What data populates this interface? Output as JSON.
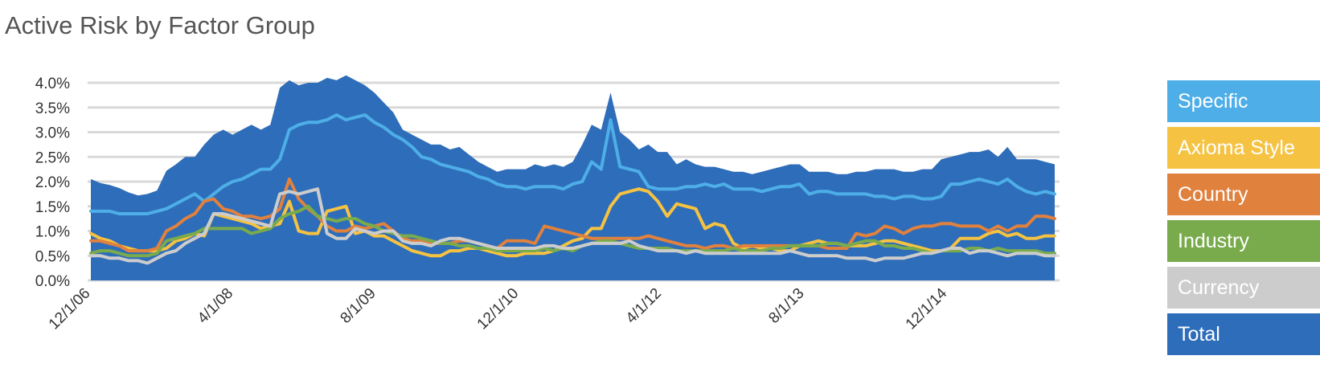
{
  "chart_data": {
    "type": "area",
    "title": "Active Risk by Factor Group",
    "y_ticks": [
      "4.0%",
      "3.5%",
      "3.0%",
      "2.5%",
      "2.0%",
      "1.5%",
      "1.0%",
      "0.5%",
      "0.0%"
    ],
    "x_ticks": [
      "12/1/06",
      "4/1/08",
      "8/1/09",
      "12/1/10",
      "4/1/12",
      "8/1/13",
      "12/1/14"
    ],
    "ylim": [
      0,
      4.0
    ],
    "grid": true,
    "legend_position": "right",
    "x_start": "2006-12",
    "x_end": "2015-12",
    "series": [
      {
        "name": "Total",
        "color": "#2E6DB9",
        "kind": "area",
        "values": [
          2.05,
          1.97,
          1.93,
          1.87,
          1.78,
          1.72,
          1.75,
          1.82,
          2.22,
          2.35,
          2.5,
          2.5,
          2.75,
          2.95,
          3.05,
          2.95,
          3.05,
          3.15,
          3.05,
          3.15,
          3.9,
          4.05,
          3.95,
          4.0,
          4.0,
          4.1,
          4.05,
          4.15,
          4.05,
          3.95,
          3.8,
          3.6,
          3.4,
          3.05,
          2.95,
          2.85,
          2.75,
          2.75,
          2.65,
          2.7,
          2.55,
          2.4,
          2.3,
          2.2,
          2.25,
          2.25,
          2.25,
          2.35,
          2.3,
          2.35,
          2.3,
          2.4,
          2.75,
          3.15,
          3.05,
          3.8,
          3.0,
          2.85,
          2.65,
          2.75,
          2.6,
          2.6,
          2.35,
          2.45,
          2.35,
          2.3,
          2.3,
          2.25,
          2.2,
          2.2,
          2.15,
          2.2,
          2.25,
          2.3,
          2.35,
          2.35,
          2.2,
          2.2,
          2.2,
          2.15,
          2.15,
          2.2,
          2.2,
          2.25,
          2.25,
          2.25,
          2.2,
          2.2,
          2.25,
          2.25,
          2.45,
          2.5,
          2.55,
          2.6,
          2.6,
          2.65,
          2.5,
          2.7,
          2.45,
          2.45,
          2.45,
          2.4,
          2.35
        ]
      },
      {
        "name": "Specific",
        "color": "#4DAEE8",
        "kind": "line",
        "values": [
          1.4,
          1.4,
          1.4,
          1.35,
          1.35,
          1.35,
          1.35,
          1.4,
          1.45,
          1.55,
          1.65,
          1.75,
          1.6,
          1.75,
          1.9,
          2.0,
          2.05,
          2.15,
          2.25,
          2.25,
          2.45,
          3.05,
          3.15,
          3.2,
          3.2,
          3.25,
          3.35,
          3.25,
          3.3,
          3.35,
          3.2,
          3.1,
          2.95,
          2.85,
          2.7,
          2.5,
          2.45,
          2.35,
          2.3,
          2.25,
          2.2,
          2.1,
          2.05,
          1.95,
          1.9,
          1.9,
          1.85,
          1.9,
          1.9,
          1.9,
          1.85,
          1.95,
          2.0,
          2.4,
          2.25,
          3.25,
          2.3,
          2.25,
          2.2,
          1.9,
          1.85,
          1.85,
          1.85,
          1.9,
          1.9,
          1.95,
          1.9,
          1.95,
          1.85,
          1.85,
          1.85,
          1.8,
          1.85,
          1.9,
          1.9,
          1.95,
          1.75,
          1.8,
          1.8,
          1.75,
          1.75,
          1.75,
          1.75,
          1.7,
          1.7,
          1.65,
          1.7,
          1.7,
          1.65,
          1.65,
          1.7,
          1.95,
          1.95,
          2.0,
          2.05,
          2.0,
          1.95,
          2.05,
          1.9,
          1.8,
          1.75,
          1.8,
          1.75
        ]
      },
      {
        "name": "Axioma Style",
        "color": "#F5C242",
        "kind": "line",
        "values": [
          0.95,
          0.85,
          0.8,
          0.7,
          0.65,
          0.6,
          0.6,
          0.6,
          0.65,
          0.8,
          0.85,
          0.95,
          0.9,
          1.35,
          1.3,
          1.25,
          1.2,
          1.15,
          1.05,
          1.1,
          1.15,
          1.6,
          1.0,
          0.95,
          0.95,
          1.4,
          1.45,
          1.5,
          0.95,
          1.0,
          0.9,
          0.9,
          0.8,
          0.7,
          0.6,
          0.55,
          0.5,
          0.5,
          0.6,
          0.6,
          0.65,
          0.65,
          0.6,
          0.55,
          0.5,
          0.5,
          0.55,
          0.55,
          0.55,
          0.6,
          0.7,
          0.8,
          0.85,
          1.05,
          1.05,
          1.5,
          1.75,
          1.8,
          1.85,
          1.8,
          1.6,
          1.3,
          1.55,
          1.5,
          1.45,
          1.05,
          1.15,
          1.1,
          0.75,
          0.65,
          0.7,
          0.65,
          0.65,
          0.6,
          0.6,
          0.7,
          0.75,
          0.8,
          0.75,
          0.75,
          0.7,
          0.7,
          0.7,
          0.75,
          0.8,
          0.8,
          0.75,
          0.7,
          0.65,
          0.6,
          0.6,
          0.65,
          0.85,
          0.85,
          0.85,
          0.95,
          1.0,
          0.9,
          0.95,
          0.85,
          0.85,
          0.9,
          0.9
        ]
      },
      {
        "name": "Country",
        "color": "#E0813E",
        "kind": "line",
        "values": [
          0.8,
          0.8,
          0.75,
          0.7,
          0.6,
          0.6,
          0.6,
          0.65,
          1.0,
          1.1,
          1.25,
          1.35,
          1.6,
          1.65,
          1.45,
          1.4,
          1.3,
          1.3,
          1.25,
          1.3,
          1.45,
          2.05,
          1.65,
          1.45,
          1.3,
          1.1,
          1.0,
          1.0,
          1.1,
          1.05,
          1.1,
          1.15,
          1.0,
          0.85,
          0.8,
          0.8,
          0.75,
          0.75,
          0.75,
          0.8,
          0.8,
          0.75,
          0.7,
          0.65,
          0.8,
          0.8,
          0.8,
          0.75,
          1.1,
          1.05,
          1.0,
          0.95,
          0.9,
          0.85,
          0.85,
          0.85,
          0.85,
          0.85,
          0.85,
          0.9,
          0.85,
          0.8,
          0.75,
          0.7,
          0.7,
          0.65,
          0.7,
          0.7,
          0.65,
          0.7,
          0.7,
          0.7,
          0.7,
          0.7,
          0.7,
          0.7,
          0.7,
          0.7,
          0.65,
          0.65,
          0.65,
          0.95,
          0.9,
          0.95,
          1.1,
          1.05,
          0.95,
          1.05,
          1.1,
          1.1,
          1.15,
          1.15,
          1.1,
          1.1,
          1.1,
          1.0,
          1.1,
          1.0,
          1.1,
          1.1,
          1.3,
          1.3,
          1.25
        ]
      },
      {
        "name": "Industry",
        "color": "#79AB4D",
        "kind": "line",
        "values": [
          0.55,
          0.6,
          0.6,
          0.55,
          0.5,
          0.5,
          0.5,
          0.55,
          0.8,
          0.85,
          0.9,
          0.95,
          1.05,
          1.05,
          1.05,
          1.05,
          1.05,
          0.95,
          1.0,
          1.05,
          1.25,
          1.35,
          1.4,
          1.5,
          1.3,
          1.25,
          1.2,
          1.25,
          1.25,
          1.15,
          1.1,
          1.0,
          0.95,
          0.9,
          0.9,
          0.85,
          0.8,
          0.75,
          0.75,
          0.7,
          0.7,
          0.65,
          0.65,
          0.6,
          0.6,
          0.6,
          0.6,
          0.6,
          0.65,
          0.6,
          0.65,
          0.6,
          0.7,
          0.75,
          0.8,
          0.8,
          0.75,
          0.7,
          0.65,
          0.65,
          0.65,
          0.65,
          0.6,
          0.6,
          0.6,
          0.6,
          0.6,
          0.6,
          0.65,
          0.6,
          0.6,
          0.6,
          0.65,
          0.65,
          0.7,
          0.7,
          0.7,
          0.7,
          0.75,
          0.75,
          0.7,
          0.75,
          0.8,
          0.8,
          0.7,
          0.7,
          0.65,
          0.65,
          0.6,
          0.55,
          0.6,
          0.6,
          0.6,
          0.65,
          0.65,
          0.6,
          0.65,
          0.6,
          0.6,
          0.6,
          0.6,
          0.55,
          0.55
        ]
      },
      {
        "name": "Currency",
        "color": "#CCCCCC",
        "kind": "line",
        "values": [
          0.5,
          0.5,
          0.45,
          0.45,
          0.4,
          0.4,
          0.35,
          0.45,
          0.55,
          0.6,
          0.75,
          0.85,
          0.95,
          1.35,
          1.35,
          1.3,
          1.25,
          1.2,
          1.15,
          1.1,
          1.75,
          1.8,
          1.75,
          1.8,
          1.85,
          0.95,
          0.85,
          0.85,
          1.05,
          1.0,
          0.95,
          1.0,
          1.0,
          0.8,
          0.75,
          0.75,
          0.7,
          0.8,
          0.85,
          0.85,
          0.8,
          0.75,
          0.7,
          0.65,
          0.65,
          0.65,
          0.65,
          0.65,
          0.7,
          0.7,
          0.65,
          0.65,
          0.7,
          0.75,
          0.75,
          0.75,
          0.75,
          0.8,
          0.7,
          0.65,
          0.6,
          0.6,
          0.6,
          0.55,
          0.6,
          0.55,
          0.55,
          0.55,
          0.55,
          0.55,
          0.55,
          0.55,
          0.55,
          0.55,
          0.6,
          0.55,
          0.5,
          0.5,
          0.5,
          0.5,
          0.45,
          0.45,
          0.45,
          0.4,
          0.45,
          0.45,
          0.45,
          0.5,
          0.55,
          0.55,
          0.6,
          0.65,
          0.65,
          0.55,
          0.6,
          0.6,
          0.55,
          0.5,
          0.55,
          0.55,
          0.55,
          0.5,
          0.5
        ]
      }
    ]
  },
  "legend": [
    {
      "label": "Specific",
      "color": "#4DAEE8"
    },
    {
      "label": "Axioma Style",
      "color": "#F5C242"
    },
    {
      "label": "Country",
      "color": "#E0813E"
    },
    {
      "label": "Industry",
      "color": "#79AB4D"
    },
    {
      "label": "Currency",
      "color": "#CCCCCC"
    },
    {
      "label": "Total",
      "color": "#2E6DB9"
    }
  ]
}
